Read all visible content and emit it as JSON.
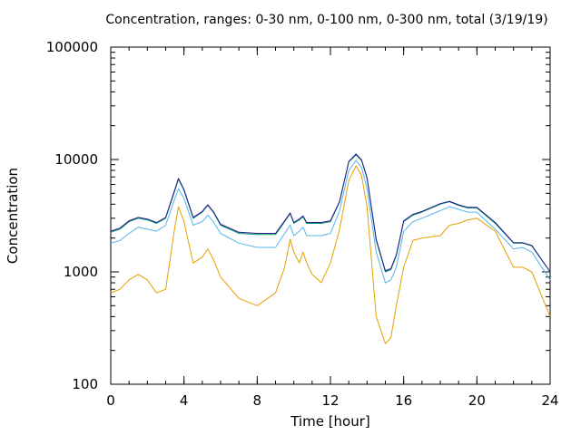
{
  "chart_data": {
    "type": "line",
    "title": "Concentration, ranges: 0-30 nm, 0-100 nm, 0-300 nm, total (3/19/19)",
    "xlabel": "Time [hour]",
    "ylabel": "Concentration",
    "xlim": [
      0,
      24
    ],
    "ylim": [
      100,
      100000
    ],
    "yscale": "log",
    "x_ticks": [
      0,
      4,
      8,
      12,
      16,
      20,
      24
    ],
    "x_tick_labels": [
      "0",
      "4",
      "8",
      "12",
      "16",
      "20",
      "24"
    ],
    "y_ticks": [
      100,
      1000,
      10000,
      100000
    ],
    "y_tick_labels": [
      "100",
      "1000",
      "10000",
      "100000"
    ],
    "grid": false,
    "colors": {
      "series_0_30": "#e69f00",
      "series_0_100": "#56b4e9",
      "series_0_300": "#009e73",
      "series_total": "#2b1a8c"
    },
    "x": [
      0,
      0.5,
      1,
      1.5,
      2,
      2.5,
      3,
      3.5,
      3.7,
      4,
      4.5,
      5,
      5.3,
      5.6,
      6,
      7,
      8,
      9,
      9.5,
      9.8,
      10,
      10.3,
      10.5,
      10.7,
      11,
      11.5,
      12,
      12.5,
      13,
      13.4,
      13.7,
      14,
      14.5,
      15,
      15.3,
      15.6,
      16,
      16.5,
      17,
      18,
      18.5,
      19,
      19.5,
      20,
      21,
      22,
      22.5,
      23,
      24
    ],
    "series": [
      {
        "values": [
          650,
          700,
          850,
          950,
          850,
          650,
          700,
          2500,
          3800,
          2800,
          1200,
          1350,
          1600,
          1300,
          900,
          580,
          500,
          650,
          1100,
          1950,
          1500,
          1200,
          1500,
          1200,
          950,
          800,
          1200,
          2400,
          6500,
          8800,
          7200,
          3800,
          400,
          230,
          260,
          500,
          1100,
          1900,
          2000,
          2100,
          2600,
          2700,
          2900,
          3000,
          2300,
          1100,
          1100,
          1000,
          400
        ]
      },
      {
        "values": [
          1800,
          1900,
          2200,
          2500,
          2400,
          2300,
          2600,
          4500,
          5500,
          4500,
          2600,
          2800,
          3200,
          2800,
          2200,
          1800,
          1650,
          1650,
          2200,
          2600,
          2100,
          2300,
          2500,
          2100,
          2100,
          2100,
          2200,
          3500,
          8000,
          9800,
          8500,
          5500,
          1500,
          800,
          850,
          1100,
          2300,
          2800,
          3000,
          3500,
          3800,
          3600,
          3400,
          3400,
          2400,
          1600,
          1650,
          1500,
          850
        ]
      },
      {
        "values": [
          2250,
          2400,
          2800,
          3000,
          2900,
          2700,
          3000,
          5300,
          6700,
          5300,
          3000,
          3400,
          3900,
          3400,
          2600,
          2200,
          2150,
          2150,
          2800,
          3300,
          2700,
          2900,
          3100,
          2700,
          2700,
          2700,
          2800,
          4200,
          9500,
          11000,
          9800,
          6800,
          1900,
          1000,
          1050,
          1400,
          2800,
          3200,
          3400,
          4000,
          4200,
          3900,
          3700,
          3700,
          2700,
          1800,
          1800,
          1700,
          1000
        ]
      },
      {
        "values": [
          2300,
          2450,
          2850,
          3050,
          2950,
          2750,
          3050,
          5400,
          6800,
          5400,
          3050,
          3450,
          3950,
          3450,
          2650,
          2250,
          2200,
          2200,
          2850,
          3350,
          2750,
          2950,
          3150,
          2750,
          2750,
          2750,
          2850,
          4250,
          9600,
          11200,
          9900,
          6900,
          1950,
          1020,
          1070,
          1420,
          2850,
          3250,
          3450,
          4050,
          4250,
          3950,
          3750,
          3750,
          2750,
          1820,
          1820,
          1720,
          1000
        ]
      }
    ]
  }
}
